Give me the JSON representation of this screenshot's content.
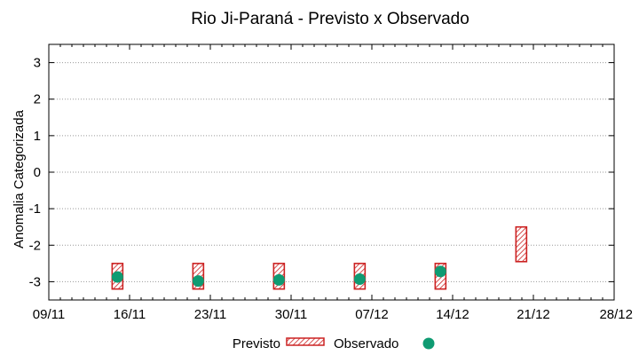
{
  "chart_data": {
    "type": "scatter",
    "title": "Rio Ji-Paraná - Previsto x Observado",
    "xlabel": "",
    "ylabel": "Anomalia Categorizada",
    "x_tick_labels": [
      "09/11",
      "16/11",
      "23/11",
      "30/11",
      "07/12",
      "14/12",
      "21/12",
      "28/12"
    ],
    "y_tick_labels": [
      "3",
      "2",
      "1",
      "0",
      "-1",
      "-2",
      "-3"
    ],
    "y_tick_values": [
      3,
      2,
      1,
      0,
      -1,
      -2,
      -3
    ],
    "xlim": [
      0,
      7
    ],
    "ylim": [
      -3.5,
      3.5
    ],
    "grid": "horizontal dotted",
    "legend_position": "bottom",
    "series": [
      {
        "name": "Previsto",
        "style": "hatched-box",
        "color": "#cc2222",
        "points": [
          {
            "x": 0.85,
            "low": -3.2,
            "high": -2.5
          },
          {
            "x": 1.85,
            "low": -3.2,
            "high": -2.5
          },
          {
            "x": 2.85,
            "low": -3.2,
            "high": -2.5
          },
          {
            "x": 3.85,
            "low": -3.2,
            "high": -2.5
          },
          {
            "x": 4.85,
            "low": -3.2,
            "high": -2.5
          },
          {
            "x": 5.85,
            "low": -2.45,
            "high": -1.5
          }
        ]
      },
      {
        "name": "Observado",
        "style": "marker",
        "color": "#0f9b72",
        "points": [
          {
            "x": 0.85,
            "y": -2.87
          },
          {
            "x": 1.85,
            "y": -2.98
          },
          {
            "x": 2.85,
            "y": -2.95
          },
          {
            "x": 3.85,
            "y": -2.93
          },
          {
            "x": 4.85,
            "y": -2.72
          }
        ]
      }
    ]
  }
}
